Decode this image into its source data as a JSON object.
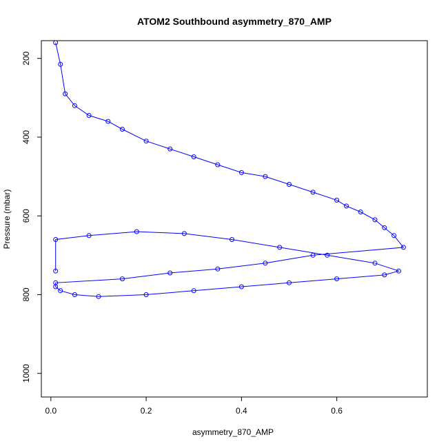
{
  "chart_data": {
    "type": "line",
    "title": "ATOM2 Southbound asymmetry_870_AMP",
    "xlabel": "asymmetry_870_AMP",
    "ylabel": "Pressure (mbar)",
    "xlim": [
      -0.02,
      0.79
    ],
    "ylim": [
      1060,
      155
    ],
    "y_inverted": true,
    "x_ticks": [
      0.0,
      0.2,
      0.4,
      0.6
    ],
    "x_tick_labels": [
      "0.0",
      "0.2",
      "0.4",
      "0.6"
    ],
    "y_ticks": [
      200,
      400,
      600,
      800,
      1000
    ],
    "y_tick_labels": [
      "200",
      "400",
      "600",
      "800",
      "1000"
    ],
    "grid": false,
    "legend": "none",
    "series": [
      {
        "marker": "open-circle",
        "line": true,
        "color": "#0000ff",
        "x": [
          0.01,
          0.02,
          0.03,
          0.05,
          0.08,
          0.12,
          0.15,
          0.2,
          0.25,
          0.3,
          0.35,
          0.4,
          0.45,
          0.5,
          0.55,
          0.6,
          0.62,
          0.65,
          0.68,
          0.7,
          0.72,
          0.74,
          0.55,
          0.45,
          0.35,
          0.25,
          0.15,
          0.01,
          0.01,
          0.02,
          0.05,
          0.1,
          0.2,
          0.3,
          0.4,
          0.5,
          0.6,
          0.7,
          0.73,
          0.68,
          0.58,
          0.48,
          0.38,
          0.28,
          0.18,
          0.08,
          0.01,
          0.01
        ],
        "y": [
          160,
          215,
          290,
          320,
          345,
          360,
          380,
          410,
          430,
          450,
          470,
          490,
          500,
          520,
          540,
          560,
          575,
          590,
          610,
          630,
          650,
          680,
          700,
          720,
          735,
          745,
          760,
          770,
          780,
          790,
          800,
          805,
          800,
          790,
          780,
          770,
          760,
          750,
          740,
          720,
          700,
          680,
          660,
          645,
          640,
          650,
          660,
          740
        ]
      }
    ]
  }
}
